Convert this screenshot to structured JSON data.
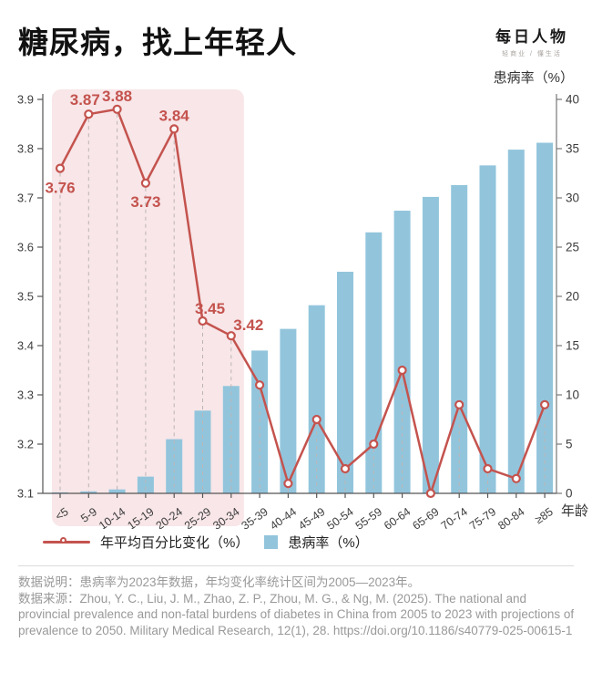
{
  "header": {
    "title": "糖尿病，找上年轻人",
    "logo": {
      "name": "每日人物",
      "tagline": "轻商业 / 懂生活"
    }
  },
  "chart_data": {
    "type": "bar",
    "subtype": "bar-line-combo",
    "categories": [
      "<5",
      "5-9",
      "10-14",
      "15-19",
      "20-24",
      "25-29",
      "30-34",
      "35-39",
      "40-44",
      "45-49",
      "50-54",
      "55-59",
      "60-64",
      "65-69",
      "70-74",
      "75-79",
      "80-84",
      "≥85"
    ],
    "xlabel": "年龄",
    "right_axis_title": "患病率（%）",
    "left_axis": {
      "min": 3.1,
      "max": 3.9,
      "step": 0.1
    },
    "right_axis": {
      "min": 0,
      "max": 40,
      "step": 5
    },
    "series": [
      {
        "name": "年平均百分比变化（%）",
        "type": "line",
        "axis": "left",
        "color": "#c4534e",
        "values": [
          3.76,
          3.87,
          3.88,
          3.73,
          3.84,
          3.45,
          3.42,
          3.32,
          3.12,
          3.25,
          3.15,
          3.2,
          3.35,
          3.1,
          3.28,
          3.15,
          3.13,
          3.28
        ],
        "labeled_point_indices": [
          0,
          1,
          2,
          3,
          4,
          5,
          6
        ],
        "point_labels": [
          "3.76",
          "3.87",
          "3.88",
          "3.73",
          "3.84",
          "3.45",
          "3.42"
        ]
      },
      {
        "name": "患病率（%）",
        "type": "bar",
        "axis": "right",
        "color": "#92c5dc",
        "values": [
          0.1,
          0.2,
          0.4,
          1.7,
          5.5,
          8.4,
          10.9,
          14.5,
          16.7,
          19.1,
          22.5,
          26.5,
          28.7,
          30.1,
          31.3,
          33.3,
          34.9,
          35.6
        ]
      }
    ],
    "highlight": {
      "from_index": 0,
      "to_index": 6,
      "color": "#f8e6e8"
    },
    "grid": "dashed vertical guides from each line point to x-axis",
    "legend_position": "bottom-left"
  },
  "footer": {
    "note": "数据说明：患病率为2023年数据，年均变化率统计区间为2005—2023年。",
    "source": "数据来源：Zhou, Y. C., Liu, J. M., Zhao, Z. P., Zhou, M. G., & Ng, M. (2025). The national and provincial prevalence and non-fatal burdens of diabetes in China from 2005 to 2023 with projections of prevalence to 2050. Military Medical Research, 12(1), 28. https://doi.org/10.1186/s40779-025-00615-1"
  }
}
